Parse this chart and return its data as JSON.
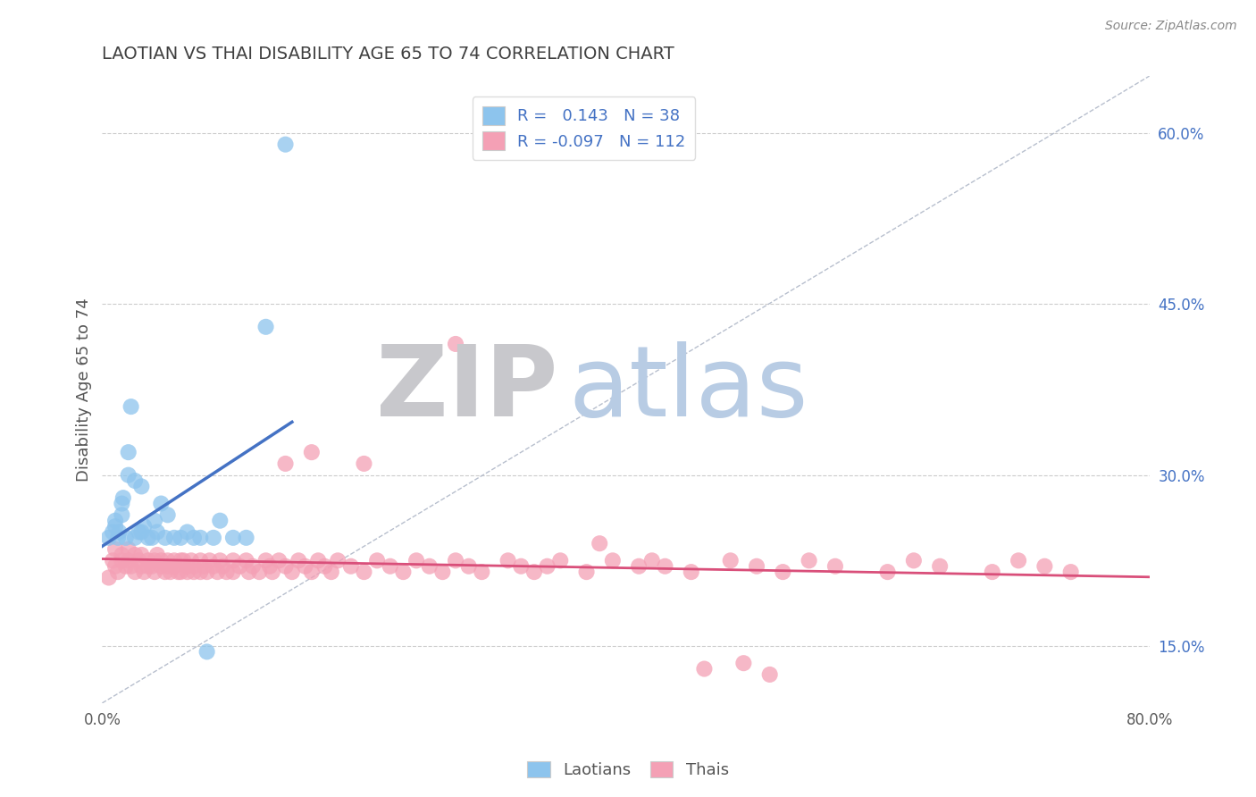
{
  "title": "LAOTIAN VS THAI DISABILITY AGE 65 TO 74 CORRELATION CHART",
  "source": "Source: ZipAtlas.com",
  "ylabel": "Disability Age 65 to 74",
  "xlim": [
    0.0,
    0.8
  ],
  "ylim": [
    0.1,
    0.65
  ],
  "yticks_right": [
    0.15,
    0.3,
    0.45,
    0.6
  ],
  "ytick_right_labels": [
    "15.0%",
    "30.0%",
    "45.0%",
    "60.0%"
  ],
  "laotian_color": "#8DC4ED",
  "thai_color": "#F4A0B5",
  "laotian_R": 0.143,
  "laotian_N": 38,
  "thai_R": -0.097,
  "thai_N": 112,
  "laotian_x": [
    0.005,
    0.008,
    0.01,
    0.01,
    0.012,
    0.013,
    0.015,
    0.015,
    0.016,
    0.018,
    0.02,
    0.02,
    0.022,
    0.025,
    0.025,
    0.028,
    0.03,
    0.03,
    0.032,
    0.035,
    0.038,
    0.04,
    0.042,
    0.045,
    0.048,
    0.05,
    0.055,
    0.06,
    0.065,
    0.07,
    0.075,
    0.08,
    0.085,
    0.09,
    0.1,
    0.11,
    0.125,
    0.14
  ],
  "laotian_y": [
    0.245,
    0.25,
    0.255,
    0.26,
    0.245,
    0.25,
    0.265,
    0.275,
    0.28,
    0.245,
    0.3,
    0.32,
    0.36,
    0.295,
    0.245,
    0.25,
    0.29,
    0.25,
    0.255,
    0.245,
    0.245,
    0.26,
    0.25,
    0.275,
    0.245,
    0.265,
    0.245,
    0.245,
    0.25,
    0.245,
    0.245,
    0.145,
    0.245,
    0.26,
    0.245,
    0.245,
    0.43,
    0.59
  ],
  "thai_x": [
    0.005,
    0.008,
    0.01,
    0.01,
    0.012,
    0.015,
    0.015,
    0.018,
    0.02,
    0.02,
    0.022,
    0.025,
    0.025,
    0.028,
    0.03,
    0.03,
    0.032,
    0.035,
    0.035,
    0.038,
    0.04,
    0.04,
    0.042,
    0.045,
    0.045,
    0.048,
    0.05,
    0.05,
    0.052,
    0.055,
    0.055,
    0.058,
    0.06,
    0.06,
    0.062,
    0.065,
    0.065,
    0.068,
    0.07,
    0.07,
    0.075,
    0.075,
    0.078,
    0.08,
    0.082,
    0.085,
    0.088,
    0.09,
    0.092,
    0.095,
    0.1,
    0.1,
    0.105,
    0.11,
    0.112,
    0.115,
    0.12,
    0.125,
    0.128,
    0.13,
    0.135,
    0.14,
    0.145,
    0.15,
    0.155,
    0.16,
    0.165,
    0.17,
    0.175,
    0.18,
    0.19,
    0.2,
    0.21,
    0.22,
    0.23,
    0.24,
    0.25,
    0.26,
    0.27,
    0.28,
    0.29,
    0.31,
    0.32,
    0.33,
    0.34,
    0.35,
    0.37,
    0.39,
    0.41,
    0.43,
    0.45,
    0.48,
    0.5,
    0.52,
    0.54,
    0.56,
    0.6,
    0.62,
    0.64,
    0.68,
    0.7,
    0.72,
    0.74,
    0.2,
    0.27,
    0.14,
    0.16,
    0.38,
    0.42,
    0.46,
    0.49,
    0.51
  ],
  "thai_y": [
    0.21,
    0.225,
    0.235,
    0.22,
    0.215,
    0.23,
    0.225,
    0.22,
    0.225,
    0.235,
    0.22,
    0.23,
    0.215,
    0.225,
    0.23,
    0.22,
    0.215,
    0.225,
    0.22,
    0.22,
    0.225,
    0.215,
    0.23,
    0.22,
    0.225,
    0.215,
    0.225,
    0.22,
    0.215,
    0.225,
    0.22,
    0.215,
    0.225,
    0.215,
    0.225,
    0.22,
    0.215,
    0.225,
    0.22,
    0.215,
    0.225,
    0.215,
    0.22,
    0.215,
    0.225,
    0.22,
    0.215,
    0.225,
    0.22,
    0.215,
    0.225,
    0.215,
    0.22,
    0.225,
    0.215,
    0.22,
    0.215,
    0.225,
    0.22,
    0.215,
    0.225,
    0.22,
    0.215,
    0.225,
    0.22,
    0.215,
    0.225,
    0.22,
    0.215,
    0.225,
    0.22,
    0.215,
    0.225,
    0.22,
    0.215,
    0.225,
    0.22,
    0.215,
    0.225,
    0.22,
    0.215,
    0.225,
    0.22,
    0.215,
    0.22,
    0.225,
    0.215,
    0.225,
    0.22,
    0.22,
    0.215,
    0.225,
    0.22,
    0.215,
    0.225,
    0.22,
    0.215,
    0.225,
    0.22,
    0.215,
    0.225,
    0.22,
    0.215,
    0.31,
    0.415,
    0.31,
    0.32,
    0.24,
    0.225,
    0.13,
    0.135,
    0.125
  ],
  "background_color": "#ffffff",
  "grid_color": "#cccccc",
  "title_color": "#404040",
  "axis_label_color": "#555555",
  "tick_label_color": "#5a5a5a",
  "legend_color": "#4472c4",
  "trend_blue_color": "#4472c4",
  "trend_pink_color": "#d94f7a",
  "ref_line_color": "#b0b8c8",
  "watermark_zip_color": "#c8c8cc",
  "watermark_atlas_color": "#b8cce4"
}
